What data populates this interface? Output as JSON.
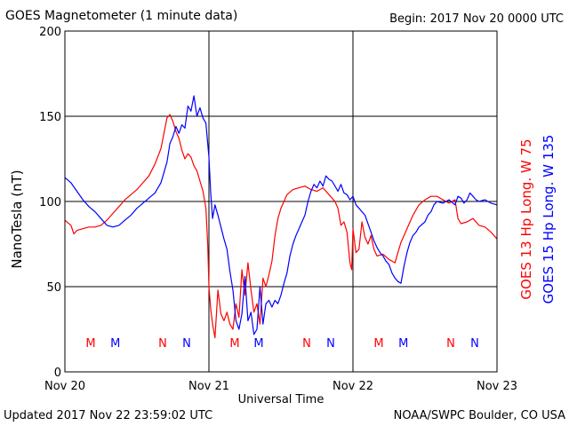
{
  "header": {
    "title": "GOES Magnetometer (1 minute data)",
    "begin": "Begin:  2017 Nov 20 0000 UTC"
  },
  "footer": {
    "updated": "Updated 2017 Nov 22 23:59:02 UTC",
    "credit": "NOAA/SWPC Boulder, CO USA"
  },
  "colors": {
    "goes13": "#ff0000",
    "goes15": "#0000ff",
    "grid": "#000000"
  },
  "chart_data": {
    "type": "line",
    "title": "GOES Magnetometer (1 minute data)",
    "xlabel": "Universal Time",
    "ylabel": "NanoTesla (nT)",
    "xlim": [
      0,
      72
    ],
    "ylim": [
      0,
      200
    ],
    "grid": true,
    "x_ticks": [
      {
        "x": 0,
        "label": "Nov 20"
      },
      {
        "x": 24,
        "label": "Nov 21"
      },
      {
        "x": 48,
        "label": "Nov 22"
      },
      {
        "x": 72,
        "label": "Nov 23"
      }
    ],
    "y_ticks": [
      0,
      50,
      100,
      150,
      200
    ],
    "legend": [
      {
        "name": "GOES 13 Hp  Long. W 75",
        "color": "#ff0000"
      },
      {
        "name": "GOES 15 Hp  Long. W 135",
        "color": "#0000ff"
      }
    ],
    "markers": [
      {
        "x": 4.3,
        "label": "M",
        "color": "#ff0000"
      },
      {
        "x": 8.4,
        "label": "M",
        "color": "#0000ff"
      },
      {
        "x": 16.3,
        "label": "N",
        "color": "#ff0000"
      },
      {
        "x": 20.3,
        "label": "N",
        "color": "#0000ff"
      },
      {
        "x": 28.3,
        "label": "M",
        "color": "#ff0000"
      },
      {
        "x": 32.3,
        "label": "M",
        "color": "#0000ff"
      },
      {
        "x": 40.3,
        "label": "N",
        "color": "#ff0000"
      },
      {
        "x": 44.3,
        "label": "N",
        "color": "#0000ff"
      },
      {
        "x": 52.3,
        "label": "M",
        "color": "#ff0000"
      },
      {
        "x": 56.4,
        "label": "M",
        "color": "#0000ff"
      },
      {
        "x": 64.3,
        "label": "N",
        "color": "#ff0000"
      },
      {
        "x": 68.3,
        "label": "N",
        "color": "#0000ff"
      }
    ],
    "series": [
      {
        "name": "GOES 13 Hp  Long. W 75",
        "color": "#ff0000",
        "points": [
          [
            0,
            89
          ],
          [
            1,
            86
          ],
          [
            1.5,
            81
          ],
          [
            2,
            83
          ],
          [
            3,
            84
          ],
          [
            4,
            85
          ],
          [
            5,
            85
          ],
          [
            6,
            86
          ],
          [
            7,
            89
          ],
          [
            8,
            93
          ],
          [
            9,
            97
          ],
          [
            10,
            101
          ],
          [
            11,
            104
          ],
          [
            12,
            107
          ],
          [
            13,
            111
          ],
          [
            14,
            115
          ],
          [
            15,
            122
          ],
          [
            16,
            131
          ],
          [
            16.5,
            140
          ],
          [
            17,
            149
          ],
          [
            17.5,
            151
          ],
          [
            18,
            147
          ],
          [
            18.5,
            141
          ],
          [
            19,
            137
          ],
          [
            19.5,
            130
          ],
          [
            20,
            125
          ],
          [
            20.5,
            128
          ],
          [
            21,
            126
          ],
          [
            21.5,
            121
          ],
          [
            22,
            118
          ],
          [
            22.5,
            112
          ],
          [
            23,
            106
          ],
          [
            23.5,
            96
          ],
          [
            23.8,
            74
          ],
          [
            24,
            50
          ],
          [
            24.3,
            37
          ],
          [
            24.6,
            28
          ],
          [
            25,
            20
          ],
          [
            25.5,
            48
          ],
          [
            26,
            34
          ],
          [
            26.5,
            30
          ],
          [
            27,
            35
          ],
          [
            27.5,
            28
          ],
          [
            28,
            25
          ],
          [
            28.5,
            40
          ],
          [
            29,
            32
          ],
          [
            29.5,
            60
          ],
          [
            30,
            45
          ],
          [
            30.5,
            64
          ],
          [
            31,
            48
          ],
          [
            31.5,
            35
          ],
          [
            32,
            40
          ],
          [
            32.5,
            28
          ],
          [
            33,
            55
          ],
          [
            33.5,
            50
          ],
          [
            34,
            57
          ],
          [
            34.5,
            65
          ],
          [
            35,
            80
          ],
          [
            35.5,
            90
          ],
          [
            36,
            96
          ],
          [
            36.5,
            100
          ],
          [
            37,
            104
          ],
          [
            38,
            107
          ],
          [
            39,
            108
          ],
          [
            40,
            109
          ],
          [
            41,
            107
          ],
          [
            42,
            106
          ],
          [
            43,
            108
          ],
          [
            44,
            104
          ],
          [
            45,
            100
          ],
          [
            45.5,
            96
          ],
          [
            46,
            86
          ],
          [
            46.5,
            88
          ],
          [
            47,
            82
          ],
          [
            47.5,
            64
          ],
          [
            47.8,
            60
          ],
          [
            48,
            84
          ],
          [
            48.5,
            70
          ],
          [
            49,
            72
          ],
          [
            49.5,
            88
          ],
          [
            50,
            79
          ],
          [
            50.5,
            75
          ],
          [
            51,
            80
          ],
          [
            51.5,
            72
          ],
          [
            52,
            68
          ],
          [
            53,
            69
          ],
          [
            54,
            66
          ],
          [
            55,
            64
          ],
          [
            55.5,
            70
          ],
          [
            56,
            76
          ],
          [
            57,
            84
          ],
          [
            58,
            92
          ],
          [
            59,
            98
          ],
          [
            60,
            101
          ],
          [
            61,
            103
          ],
          [
            62,
            103
          ],
          [
            63,
            101
          ],
          [
            64,
            99
          ],
          [
            65,
            101
          ],
          [
            65.5,
            90
          ],
          [
            66,
            87
          ],
          [
            67,
            88
          ],
          [
            68,
            90
          ],
          [
            69,
            86
          ],
          [
            70,
            85
          ],
          [
            71,
            82
          ],
          [
            72,
            78
          ]
        ]
      },
      {
        "name": "GOES 15 Hp  Long. W 135",
        "color": "#0000ff",
        "points": [
          [
            0,
            114
          ],
          [
            1,
            111
          ],
          [
            2,
            106
          ],
          [
            3,
            101
          ],
          [
            4,
            97
          ],
          [
            5,
            94
          ],
          [
            6,
            90
          ],
          [
            7,
            86
          ],
          [
            8,
            85
          ],
          [
            9,
            86
          ],
          [
            10,
            89
          ],
          [
            11,
            92
          ],
          [
            12,
            96
          ],
          [
            13,
            99
          ],
          [
            14,
            102
          ],
          [
            15,
            105
          ],
          [
            16,
            111
          ],
          [
            17,
            123
          ],
          [
            17.5,
            134
          ],
          [
            18,
            138
          ],
          [
            18.5,
            144
          ],
          [
            19,
            140
          ],
          [
            19.5,
            145
          ],
          [
            20,
            143
          ],
          [
            20.5,
            156
          ],
          [
            21,
            153
          ],
          [
            21.5,
            162
          ],
          [
            22,
            150
          ],
          [
            22.5,
            155
          ],
          [
            23,
            149
          ],
          [
            23.5,
            146
          ],
          [
            24,
            126
          ],
          [
            24.3,
            105
          ],
          [
            24.6,
            90
          ],
          [
            25,
            98
          ],
          [
            25.5,
            92
          ],
          [
            26,
            85
          ],
          [
            26.5,
            78
          ],
          [
            27,
            72
          ],
          [
            27.5,
            59
          ],
          [
            28,
            48
          ],
          [
            28.5,
            30
          ],
          [
            29,
            25
          ],
          [
            29.5,
            34
          ],
          [
            30,
            56
          ],
          [
            30.5,
            30
          ],
          [
            31,
            35
          ],
          [
            31.5,
            22
          ],
          [
            32,
            25
          ],
          [
            32.5,
            50
          ],
          [
            33,
            28
          ],
          [
            33.5,
            40
          ],
          [
            34,
            42
          ],
          [
            34.5,
            38
          ],
          [
            35,
            42
          ],
          [
            35.5,
            40
          ],
          [
            36,
            45
          ],
          [
            36.5,
            52
          ],
          [
            37,
            58
          ],
          [
            37.5,
            68
          ],
          [
            38,
            75
          ],
          [
            38.5,
            80
          ],
          [
            39,
            84
          ],
          [
            39.5,
            88
          ],
          [
            40,
            92
          ],
          [
            40.5,
            100
          ],
          [
            41,
            106
          ],
          [
            41.5,
            110
          ],
          [
            42,
            108
          ],
          [
            42.5,
            112
          ],
          [
            43,
            109
          ],
          [
            43.5,
            115
          ],
          [
            44,
            113
          ],
          [
            44.5,
            112
          ],
          [
            45,
            109
          ],
          [
            45.5,
            106
          ],
          [
            46,
            110
          ],
          [
            46.5,
            105
          ],
          [
            47,
            104
          ],
          [
            47.5,
            101
          ],
          [
            48,
            103
          ],
          [
            48.5,
            98
          ],
          [
            49,
            96
          ],
          [
            49.5,
            94
          ],
          [
            50,
            92
          ],
          [
            50.5,
            87
          ],
          [
            51,
            82
          ],
          [
            51.5,
            77
          ],
          [
            52,
            73
          ],
          [
            52.5,
            70
          ],
          [
            53,
            68
          ],
          [
            53.5,
            65
          ],
          [
            54,
            63
          ],
          [
            54.5,
            58
          ],
          [
            55,
            55
          ],
          [
            55.5,
            53
          ],
          [
            56,
            52
          ],
          [
            56.5,
            62
          ],
          [
            57,
            70
          ],
          [
            57.5,
            76
          ],
          [
            58,
            80
          ],
          [
            58.5,
            82
          ],
          [
            59,
            85
          ],
          [
            60,
            88
          ],
          [
            60.5,
            92
          ],
          [
            61,
            94
          ],
          [
            61.5,
            98
          ],
          [
            62,
            100
          ],
          [
            63,
            99
          ],
          [
            64,
            101
          ],
          [
            65,
            98
          ],
          [
            65.5,
            103
          ],
          [
            66,
            102
          ],
          [
            66.5,
            99
          ],
          [
            67,
            101
          ],
          [
            67.5,
            105
          ],
          [
            68,
            103
          ],
          [
            68.5,
            101
          ],
          [
            69,
            100
          ],
          [
            70,
            101
          ],
          [
            71,
            99
          ],
          [
            72,
            98
          ]
        ]
      }
    ]
  }
}
